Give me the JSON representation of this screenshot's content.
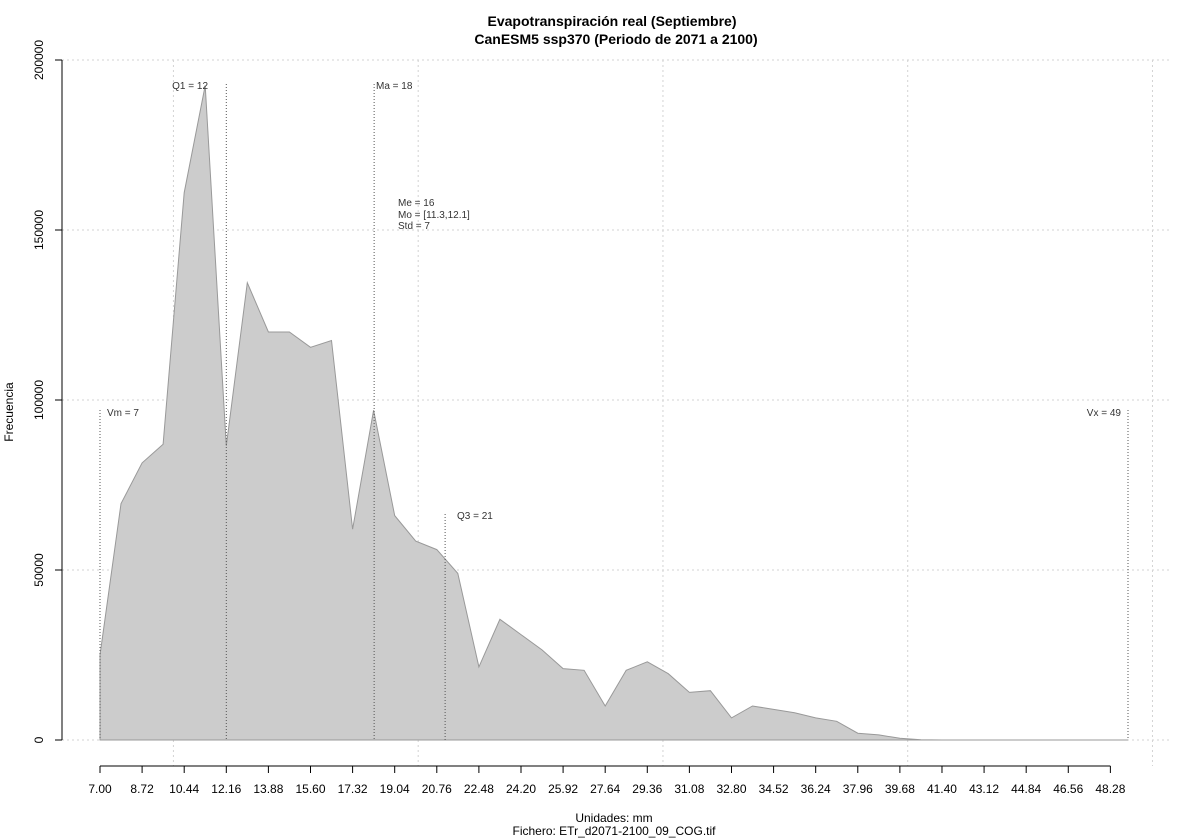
{
  "chart_data": {
    "type": "area",
    "title": "Evapotranspiración real (Septiembre)",
    "subtitle": "CanESM5 ssp370 (Periodo de 2071 a 2100)",
    "xlabel": "Unidades: mm",
    "caption": "Fichero: ETr_d2071-2100_09_COG.tif",
    "ylabel": "Frecuencia",
    "xlim": [
      7.0,
      49.0
    ],
    "ylim": [
      0,
      200000
    ],
    "x_ticks": [
      "7.00",
      "8.72",
      "10.44",
      "12.16",
      "13.88",
      "15.60",
      "17.32",
      "19.04",
      "20.76",
      "22.48",
      "24.20",
      "25.92",
      "27.64",
      "29.36",
      "31.08",
      "32.80",
      "34.52",
      "36.24",
      "37.96",
      "39.68",
      "41.40",
      "43.12",
      "44.84",
      "46.56",
      "48.28"
    ],
    "y_ticks": [
      "0",
      "50000",
      "100000",
      "150000",
      "200000"
    ],
    "grid": true,
    "fill_color": "#cccccc",
    "line_color": "#999999",
    "x": [
      7.0,
      7.86,
      8.72,
      9.58,
      10.44,
      11.3,
      12.16,
      13.02,
      13.88,
      14.74,
      15.6,
      16.46,
      17.32,
      18.18,
      19.04,
      19.9,
      20.76,
      21.62,
      22.48,
      23.34,
      24.2,
      25.06,
      25.92,
      26.78,
      27.64,
      28.5,
      29.36,
      30.22,
      31.08,
      31.94,
      32.8,
      33.66,
      34.52,
      35.38,
      36.24,
      37.1,
      37.96,
      38.82,
      39.68,
      40.54,
      41.4,
      42.26,
      43.12,
      43.98,
      44.84,
      45.7,
      46.56,
      47.42,
      48.28,
      49.0
    ],
    "y": [
      25000,
      69500,
      81500,
      87000,
      161000,
      192500,
      86500,
      134500,
      120000,
      120000,
      115500,
      117500,
      62000,
      97000,
      66000,
      58500,
      56000,
      49000,
      21500,
      35500,
      31000,
      26500,
      21000,
      20500,
      10000,
      20500,
      23000,
      19500,
      14000,
      14500,
      6500,
      10000,
      9000,
      8000,
      6500,
      5500,
      2000,
      1500,
      500,
      100,
      0,
      0,
      0,
      0,
      0,
      0,
      0,
      0,
      0,
      0
    ],
    "annotations": {
      "vm": {
        "label": "Vm = 7",
        "x": 7.0
      },
      "q1": {
        "label": "Q1 = 12",
        "x": 12.16
      },
      "ma": {
        "label": "Ma = 18",
        "x": 18.2
      },
      "me": {
        "label": "Me = 16"
      },
      "mo": {
        "label": "Mo = [11.3,12.1]"
      },
      "std": {
        "label": "Std = 7"
      },
      "q3": {
        "label": "Q3 = 21",
        "x": 21.1
      },
      "vx": {
        "label": "Vx = 49",
        "x": 49.0
      }
    }
  }
}
